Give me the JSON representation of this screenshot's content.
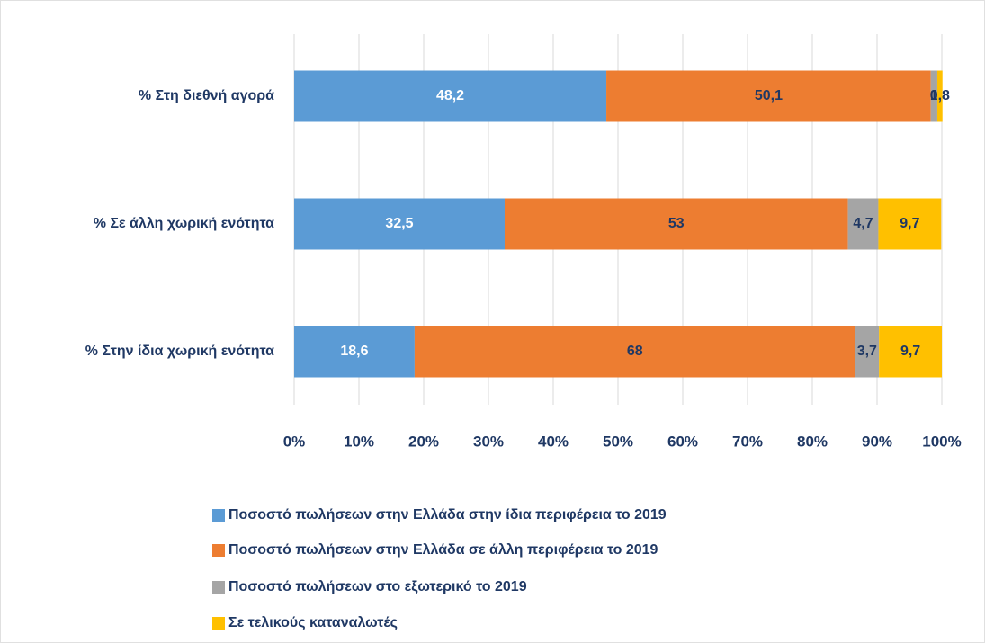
{
  "chart_data": {
    "type": "stacked-bar-horizontal",
    "categories": [
      "% Στη διεθνή αγορά",
      "% Σε  άλλη χωρική ενότητα",
      "% Στην ίδια χωρική ενότητα"
    ],
    "series": [
      {
        "name": "Ποσοστό πωλήσεων στην Ελλάδα στην ίδια περιφέρεια το 2019",
        "color": "#5b9bd5",
        "values": [
          48.2,
          32.5,
          18.6
        ],
        "value_labels": [
          "48,2",
          "32,5",
          "18,6"
        ],
        "label_color": "#ffffff"
      },
      {
        "name": "Ποσοστό πωλήσεων στην Ελλάδα σε άλλη περιφέρεια το 2019",
        "color": "#ed7d31",
        "values": [
          50.1,
          53,
          68
        ],
        "value_labels": [
          "50,1",
          "53",
          "68"
        ],
        "label_color": "#1f3864"
      },
      {
        "name": "Ποσοστό πωλήσεων στο εξωτερικό το 2019",
        "color": "#a5a5a5",
        "values": [
          1,
          4.7,
          3.7
        ],
        "value_labels": [
          "1",
          "4,7",
          "3,7"
        ],
        "label_color": "#1f3864"
      },
      {
        "name": "Σε τελικούς καταναλωτές",
        "color": "#ffc000",
        "values": [
          0.8,
          9.7,
          9.7
        ],
        "value_labels": [
          "0,8",
          "9,7",
          "9,7"
        ],
        "label_color": "#1f3864"
      }
    ],
    "xlim": [
      0,
      100
    ],
    "xticks": [
      {
        "value": 0,
        "label": "0%"
      },
      {
        "value": 10,
        "label": "10%"
      },
      {
        "value": 20,
        "label": "20%"
      },
      {
        "value": 30,
        "label": "30%"
      },
      {
        "value": 40,
        "label": "40%"
      },
      {
        "value": 50,
        "label": "50%"
      },
      {
        "value": 60,
        "label": "60%"
      },
      {
        "value": 70,
        "label": "70%"
      },
      {
        "value": 80,
        "label": "80%"
      },
      {
        "value": 90,
        "label": "90%"
      },
      {
        "value": 100,
        "label": "100%"
      }
    ],
    "grid": true,
    "legend": "bottom"
  }
}
